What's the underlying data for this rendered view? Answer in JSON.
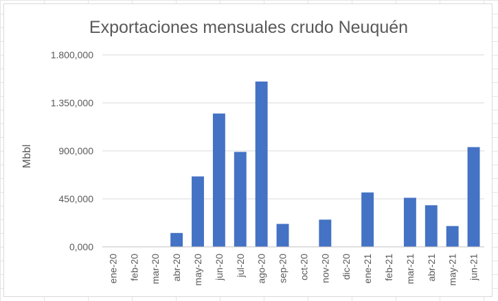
{
  "chart_data": {
    "type": "bar",
    "title": "Exportaciones mensuales crudo Neuquén",
    "xlabel": "",
    "ylabel": "Mbbl",
    "ylim": [
      0,
      1800000
    ],
    "yticks": [
      0,
      450000,
      900000,
      1350000,
      1800000
    ],
    "ytick_labels": [
      "0,000",
      "450,000",
      "900,000",
      "1.350,000",
      "1.800,000"
    ],
    "categories": [
      "ene-20",
      "feb-20",
      "mar-20",
      "abr-20",
      "may-20",
      "jun-20",
      "jul-20",
      "ago-20",
      "sep-20",
      "oct-20",
      "nov-20",
      "dic-20",
      "ene-21",
      "feb-21",
      "mar-21",
      "abr-21",
      "may-21",
      "jun-21"
    ],
    "values": [
      0,
      0,
      0,
      130000,
      660000,
      1250000,
      890000,
      1550000,
      215000,
      0,
      255000,
      0,
      510000,
      0,
      460000,
      390000,
      195000,
      935000
    ],
    "grid": true,
    "bar_color": "#4472c4"
  }
}
